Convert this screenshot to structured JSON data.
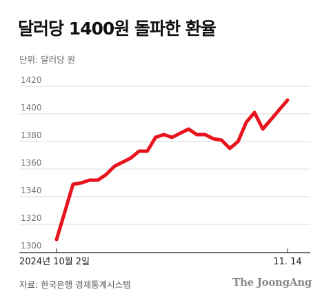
{
  "header": {
    "title": "달러당 1400원 돌파한 환율",
    "unit": "단위: 달러당 원"
  },
  "footer": {
    "source": "자료: 한국은행 경제통계시스템",
    "publisher": "The JoongAng"
  },
  "chart_data": {
    "type": "line",
    "title": "달러당 1400원 돌파한 환율",
    "xlabel": "",
    "ylabel": "",
    "ylim": [
      1300,
      1420
    ],
    "y_ticks": [
      1300,
      1320,
      1340,
      1360,
      1380,
      1400,
      1420
    ],
    "x_tick_labels": [
      {
        "label": "2024년 10월 2일",
        "index": 0
      },
      {
        "label": "11. 14",
        "index": 30
      }
    ],
    "grid": true,
    "line_color": "#e8141d",
    "series": [
      {
        "values": [
          1305,
          1325,
          1345,
          1346,
          1348,
          1348,
          1352,
          1358,
          1361,
          1364,
          1369,
          1369,
          1379,
          1381,
          1379,
          1382,
          1385,
          1381,
          1381,
          1378,
          1377,
          1371,
          1376,
          1390,
          1397,
          1385,
          1392,
          1399,
          1406
        ]
      }
    ]
  }
}
